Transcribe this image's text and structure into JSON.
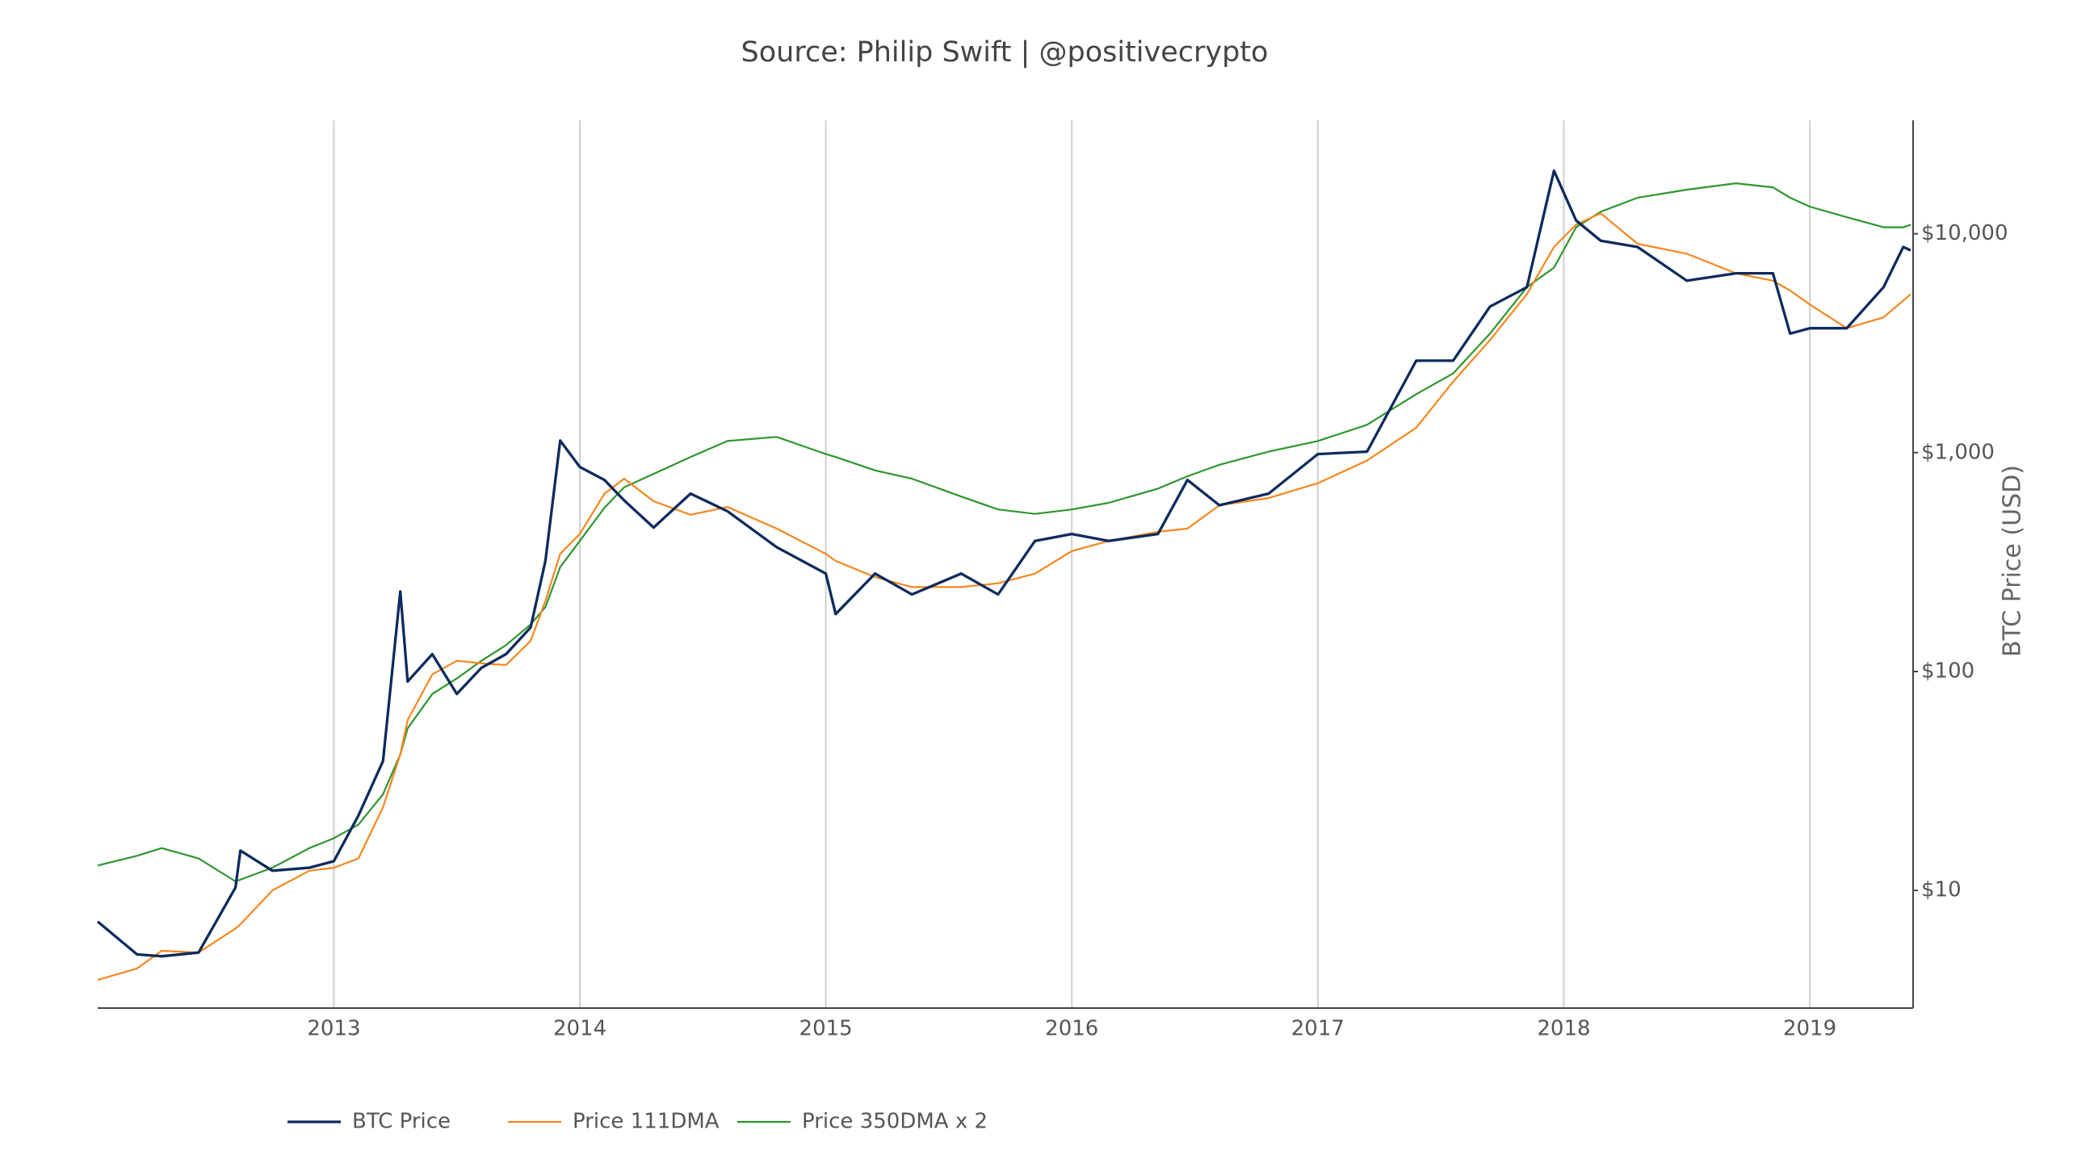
{
  "chart_data": {
    "type": "line",
    "title": "Source: Philip Swift | @positivecrypto",
    "y_label": "BTC Price (USD)",
    "log_y": true,
    "grid": "x",
    "legend": "bottom-left",
    "x": [
      2012.04,
      2012.2,
      2012.3,
      2012.45,
      2012.6,
      2012.62,
      2012.75,
      2012.9,
      2013.0,
      2013.1,
      2013.2,
      2013.27,
      2013.3,
      2013.4,
      2013.5,
      2013.6,
      2013.7,
      2013.8,
      2013.86,
      2013.92,
      2014.0,
      2014.1,
      2014.18,
      2014.3,
      2014.45,
      2014.6,
      2014.8,
      2015.0,
      2015.04,
      2015.2,
      2015.35,
      2015.55,
      2015.7,
      2015.85,
      2016.0,
      2016.15,
      2016.35,
      2016.47,
      2016.6,
      2016.8,
      2017.0,
      2017.2,
      2017.4,
      2017.55,
      2017.7,
      2017.85,
      2017.96,
      2018.05,
      2018.15,
      2018.3,
      2018.5,
      2018.7,
      2018.85,
      2018.92,
      2019.0,
      2019.15,
      2019.3,
      2019.38,
      2019.41
    ],
    "series": [
      {
        "name": "BTC Price",
        "color": "#0d2b5c",
        "width": 3.3,
        "values": [
          7.2,
          5.1,
          5,
          5.2,
          10.3,
          15.2,
          12.3,
          12.7,
          13.6,
          22,
          39,
          232,
          90,
          120,
          79,
          104,
          120,
          159,
          320,
          1135,
          860,
          750,
          605,
          455,
          650,
          540,
          370,
          280,
          183,
          280,
          225,
          280,
          225,
          395,
          425,
          395,
          425,
          750,
          575,
          650,
          985,
          1010,
          2630,
          2630,
          4650,
          5700,
          19400,
          11500,
          9300,
          8700,
          6100,
          6600,
          6600,
          3500,
          3700,
          3700,
          5700,
          8700,
          8400
        ]
      },
      {
        "name": "Price 111DMA",
        "color": "#f7861e",
        "width": 2.2,
        "values": [
          3.9,
          4.4,
          5.3,
          5.2,
          6.7,
          7.0,
          10,
          12.3,
          12.7,
          14,
          24,
          41.8,
          60,
          97,
          112,
          109,
          107,
          138,
          210,
          345,
          425,
          650,
          760,
          600,
          520,
          565,
          450,
          345,
          320,
          270,
          243,
          243,
          253,
          280,
          355,
          395,
          435,
          450,
          575,
          620,
          725,
          920,
          1300,
          2110,
          3270,
          5300,
          8700,
          11000,
          12400,
          9000,
          8100,
          6600,
          6100,
          5500,
          4750,
          3700,
          4150,
          4950,
          5300
        ]
      },
      {
        "name": "Price 350DMA x 2",
        "color": "#2e962e",
        "width": 2.2,
        "values": [
          13,
          14.4,
          15.6,
          14,
          11,
          11.2,
          12.7,
          15.6,
          17.3,
          20,
          27.5,
          41.8,
          55,
          79,
          93,
          112,
          132,
          164,
          197,
          300,
          395,
          560,
          695,
          800,
          955,
          1130,
          1180,
          985,
          955,
          830,
          760,
          630,
          550,
          525,
          550,
          590,
          685,
          780,
          880,
          1010,
          1130,
          1340,
          1850,
          2300,
          3500,
          5700,
          7000,
          10700,
          12600,
          14600,
          15900,
          17000,
          16300,
          14600,
          13300,
          11900,
          10700,
          10700,
          11000
        ]
      }
    ],
    "xlim": [
      2012.04,
      2019.42
    ],
    "xticks": [
      2013,
      2014,
      2015,
      2016,
      2017,
      2018,
      2019
    ],
    "ylim": [
      2.9,
      33000
    ],
    "yticks": [
      {
        "value": 10,
        "label": "$10"
      },
      {
        "value": 100,
        "label": "$100"
      },
      {
        "value": 1000,
        "label": "$1,000"
      },
      {
        "value": 10000,
        "label": "$10,000"
      }
    ]
  }
}
